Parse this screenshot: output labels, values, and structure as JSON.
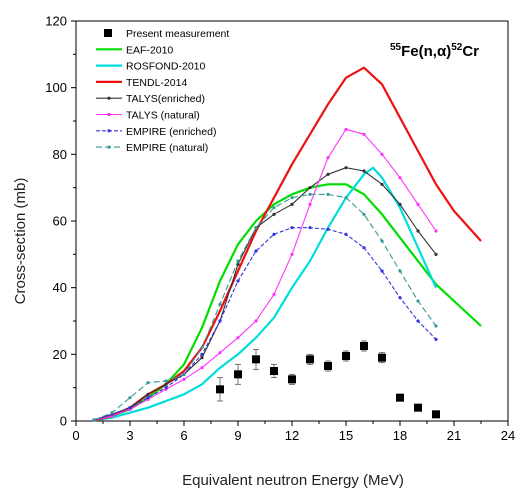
{
  "chart_data": {
    "type": "line",
    "title": "",
    "annotation": {
      "parts": [
        {
          "text": "55",
          "sup": true
        },
        {
          "text": "Fe(n,",
          "sup": false
        },
        {
          "text": "α",
          "sup": false
        },
        {
          "text": ")",
          "sup": false
        },
        {
          "text": "52",
          "sup": true
        },
        {
          "text": "Cr",
          "sup": false
        }
      ]
    },
    "xlabel": "Equivalent neutron Energy (MeV)",
    "ylabel": "Cross-section (mb)",
    "xlim": [
      0,
      24
    ],
    "ylim": [
      0,
      120
    ],
    "xticks": [
      "0",
      "3",
      "6",
      "9",
      "12",
      "15",
      "18",
      "21",
      "24"
    ],
    "yticks": [
      "0",
      "20",
      "40",
      "60",
      "80",
      "100",
      "120"
    ],
    "grid": false,
    "legend_position": "top-left",
    "measurement": {
      "name": "Present measurement",
      "color": "#000000",
      "points": [
        {
          "x": 8,
          "y": 9.5,
          "err": 3.5
        },
        {
          "x": 9,
          "y": 14,
          "err": 3
        },
        {
          "x": 10,
          "y": 18.5,
          "err": 3
        },
        {
          "x": 11,
          "y": 15,
          "err": 2
        },
        {
          "x": 12,
          "y": 12.5,
          "err": 1.5
        },
        {
          "x": 13,
          "y": 18.5,
          "err": 1.5
        },
        {
          "x": 14,
          "y": 16.5,
          "err": 1.5
        },
        {
          "x": 15,
          "y": 19.5,
          "err": 1.5
        },
        {
          "x": 16,
          "y": 22.5,
          "err": 1.5
        },
        {
          "x": 17,
          "y": 19,
          "err": 1.5
        },
        {
          "x": 18,
          "y": 7,
          "err": 0.5
        },
        {
          "x": 19,
          "y": 4,
          "err": 0.5
        },
        {
          "x": 20,
          "y": 2,
          "err": 0.5
        }
      ]
    },
    "series": [
      {
        "name": "EAF-2010",
        "color": "#00dd00",
        "width": 2.2,
        "dash": "",
        "markers": false,
        "x": [
          1,
          2,
          3,
          4,
          5,
          6,
          7,
          8,
          9,
          10,
          11,
          12,
          13,
          14,
          15,
          16,
          17,
          18,
          19,
          20,
          21,
          22.5
        ],
        "y": [
          0.3,
          1.5,
          3.5,
          7,
          11,
          17,
          28,
          42,
          53,
          60,
          65,
          68,
          70,
          71,
          71,
          68,
          62,
          55,
          48,
          41,
          36,
          28.5
        ]
      },
      {
        "name": "ROSFOND-2010",
        "color": "#00dddd",
        "width": 2.2,
        "dash": "",
        "markers": false,
        "x": [
          1,
          2,
          3,
          4,
          5,
          6,
          7,
          8,
          9,
          10,
          11,
          12,
          13,
          14,
          15,
          16,
          16.5,
          17,
          18,
          19,
          20
        ],
        "y": [
          0.2,
          1,
          2.5,
          4,
          6,
          8,
          11,
          16,
          20,
          25,
          31,
          40,
          48,
          58,
          67,
          74,
          76,
          73,
          64,
          52,
          40
        ]
      },
      {
        "name": "TENDL-2014",
        "color": "#ee1111",
        "width": 2.2,
        "dash": "",
        "markers": false,
        "x": [
          1,
          2,
          3,
          4,
          5,
          6,
          7,
          8,
          9,
          10,
          11,
          12,
          13,
          14,
          15,
          16,
          17,
          18,
          19,
          20,
          21,
          22.5
        ],
        "y": [
          0.2,
          1.5,
          4,
          8,
          11,
          15,
          22,
          33,
          45,
          57,
          67,
          77,
          86,
          95,
          103,
          106,
          101,
          91,
          81,
          71,
          63,
          54
        ]
      },
      {
        "name": "TALYS(enriched)",
        "color": "#333333",
        "width": 1.1,
        "dash": "",
        "markers": true,
        "x": [
          1,
          2,
          3,
          4,
          5,
          6,
          7,
          8,
          9,
          10,
          11,
          12,
          13,
          14,
          15,
          16,
          17,
          18,
          19,
          20
        ],
        "y": [
          0.3,
          2,
          4,
          8,
          11,
          14,
          19,
          30,
          47,
          58,
          62,
          65,
          70,
          74,
          76,
          75,
          71,
          65,
          57,
          50
        ]
      },
      {
        "name": "TALYS (natural)",
        "color": "#ff33ff",
        "width": 1.1,
        "dash": "",
        "markers": true,
        "x": [
          1,
          2,
          3,
          4,
          5,
          6,
          7,
          8,
          9,
          10,
          11,
          12,
          13,
          14,
          15,
          16,
          17,
          18,
          19,
          20
        ],
        "y": [
          0.3,
          1.5,
          3.5,
          6.5,
          9.5,
          12.5,
          16,
          20.5,
          25,
          30,
          38,
          50,
          65,
          79,
          87.5,
          86,
          80,
          73,
          65,
          57
        ]
      },
      {
        "name": "EMPIRE (enriched)",
        "color": "#3333dd",
        "width": 1.1,
        "dash": "4,2",
        "markers": true,
        "x": [
          1,
          2,
          3,
          4,
          5,
          6,
          7,
          8,
          9,
          10,
          11,
          12,
          13,
          14,
          15,
          16,
          17,
          18,
          19,
          20
        ],
        "y": [
          0.3,
          2,
          4,
          7,
          10,
          14,
          20,
          30,
          42,
          51,
          56,
          58,
          58,
          57.5,
          56,
          52,
          45,
          37,
          30,
          24.5
        ]
      },
      {
        "name": "EMPIRE (natural)",
        "color": "#339999",
        "width": 1.1,
        "dash": "6,3",
        "markers": true,
        "x": [
          1,
          2,
          3,
          4,
          5,
          6,
          7,
          8,
          9,
          10,
          11,
          12,
          13,
          14,
          15,
          16,
          17,
          18,
          19,
          20
        ],
        "y": [
          0.3,
          2.5,
          7,
          11.5,
          12,
          14,
          22,
          35,
          48,
          58,
          64,
          67,
          68,
          68,
          67,
          62,
          54,
          45,
          36,
          28.5
        ]
      }
    ]
  }
}
